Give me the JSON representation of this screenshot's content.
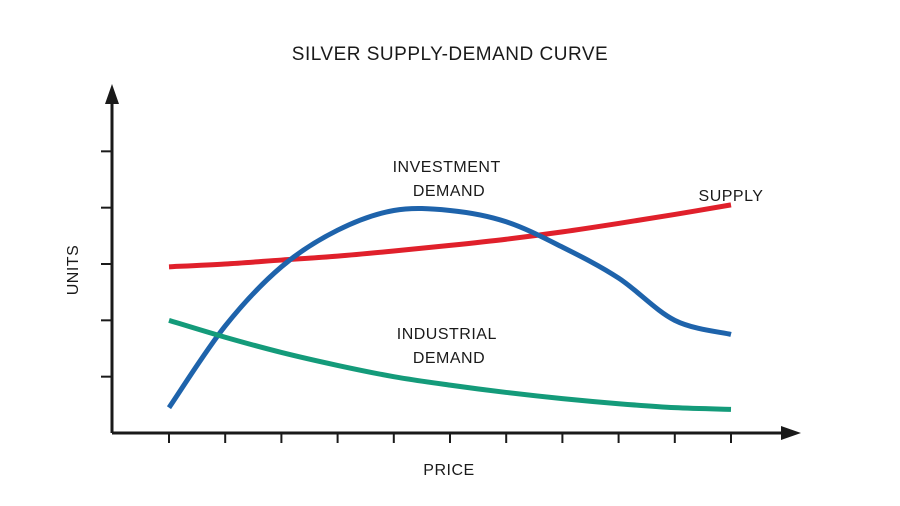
{
  "chart_data": {
    "type": "line",
    "title": "SILVER SUPPLY-DEMAND CURVE",
    "xlabel": "PRICE",
    "ylabel": "UNITS",
    "xlim": [
      0,
      10
    ],
    "ylim": [
      0,
      6
    ],
    "x_ticks": 11,
    "y_ticks": 6,
    "tick_labels_shown": false,
    "grid": false,
    "series": [
      {
        "name": "SUPPLY",
        "label_lines": [
          "SUPPLY"
        ],
        "color": "#e0202b",
        "x": [
          0,
          1,
          2,
          3,
          4,
          5,
          6,
          7,
          8,
          9,
          10
        ],
        "y": [
          2.95,
          3.0,
          3.07,
          3.14,
          3.23,
          3.33,
          3.44,
          3.57,
          3.72,
          3.88,
          4.05
        ]
      },
      {
        "name": "INVESTMENT DEMAND",
        "label_lines": [
          "INVESTMENT",
          "DEMAND"
        ],
        "color": "#1e63ab",
        "x": [
          0,
          1,
          2,
          3,
          4,
          5,
          6,
          7,
          8,
          9,
          10
        ],
        "y": [
          0.45,
          1.9,
          2.95,
          3.6,
          3.95,
          3.95,
          3.75,
          3.3,
          2.75,
          2.0,
          1.75
        ]
      },
      {
        "name": "INDUSTRIAL DEMAND",
        "label_lines": [
          "INDUSTRIAL",
          "DEMAND"
        ],
        "color": "#149b7a",
        "x": [
          0,
          1,
          2,
          3,
          4,
          5,
          6,
          7,
          8,
          9,
          10
        ],
        "y": [
          2.0,
          1.7,
          1.43,
          1.2,
          1.0,
          0.85,
          0.72,
          0.61,
          0.52,
          0.45,
          0.42
        ]
      }
    ]
  }
}
